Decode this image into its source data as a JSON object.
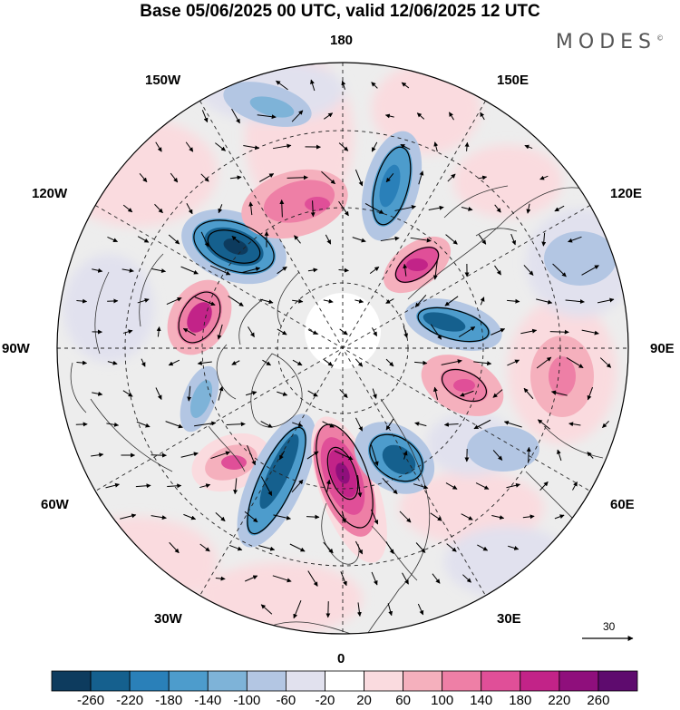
{
  "header": {
    "title": "Base 05/06/2025 00 UTC, valid 12/06/2025 12 UTC",
    "brand": "MODES",
    "brand_mark": "©"
  },
  "map": {
    "projection": "north-polar-stereographic",
    "longitude_labels": [
      "180",
      "150E",
      "120E",
      "90E",
      "60E",
      "30E",
      "0",
      "30W",
      "60W",
      "90W",
      "120W",
      "150W"
    ],
    "graticule": "dashed",
    "anomaly_centers": [
      {
        "name": "low-gulf-of-alaska",
        "sign": "negative",
        "level": "strong"
      },
      {
        "name": "high-canada-west",
        "sign": "positive",
        "level": "strong"
      },
      {
        "name": "low-hudson-bay",
        "sign": "negative",
        "level": "moderate"
      },
      {
        "name": "high-greenland-sea",
        "sign": "positive",
        "level": "strong"
      },
      {
        "name": "low-north-atlantic",
        "sign": "negative",
        "level": "strong"
      },
      {
        "name": "high-scandinavia",
        "sign": "positive",
        "level": "very-strong"
      },
      {
        "name": "low-barents-sea",
        "sign": "negative",
        "level": "strong"
      },
      {
        "name": "high-west-siberia",
        "sign": "positive",
        "level": "moderate"
      },
      {
        "name": "low-central-siberia",
        "sign": "negative",
        "level": "strong"
      },
      {
        "name": "high-east-siberia",
        "sign": "positive",
        "level": "strong"
      },
      {
        "name": "low-bering",
        "sign": "negative",
        "level": "strong"
      },
      {
        "name": "high-north-pacific",
        "sign": "positive",
        "level": "moderate"
      }
    ]
  },
  "reference_vector": {
    "label": "30"
  },
  "colorbar": {
    "labels": [
      "-260",
      "-220",
      "-180",
      "-140",
      "-100",
      "-60",
      "-20",
      "20",
      "60",
      "100",
      "140",
      "180",
      "220",
      "260"
    ],
    "colors": [
      "#0d3b5e",
      "#15608e",
      "#2a80b9",
      "#4d9ccc",
      "#7eb3d8",
      "#b3c6e3",
      "#e1e1ee",
      "#ffffff",
      "#fadbdf",
      "#f5b0bd",
      "#ee7fa6",
      "#e04f98",
      "#c22388",
      "#8f0f7c",
      "#5e0b6e"
    ]
  }
}
